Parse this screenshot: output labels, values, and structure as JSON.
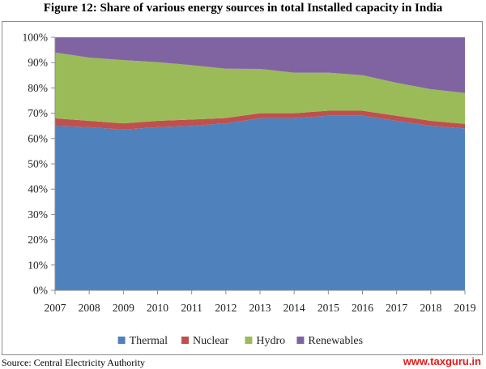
{
  "figure_title": "Figure 12: Share of various energy sources in total Installed capacity in India",
  "source_note": "Source:  Central Electricity Authority",
  "watermark": "www.taxguru.in",
  "chart_data": {
    "type": "area",
    "stacked": true,
    "percent": true,
    "categories": [
      "2007",
      "2008",
      "2009",
      "2010",
      "2011",
      "2012",
      "2013",
      "2014",
      "2015",
      "2016",
      "2017",
      "2018",
      "2019"
    ],
    "ylim": [
      0,
      100
    ],
    "yticks": [
      "0%",
      "10%",
      "20%",
      "30%",
      "40%",
      "50%",
      "60%",
      "70%",
      "80%",
      "90%",
      "100%"
    ],
    "xlabel": "",
    "ylabel": "",
    "grid": false,
    "legend_position": "bottom",
    "series": [
      {
        "name": "Thermal",
        "color": "#4f81bd",
        "values": [
          65,
          64.5,
          63.5,
          64.5,
          65,
          66,
          68,
          68,
          69,
          69,
          67,
          65,
          64
        ]
      },
      {
        "name": "Nuclear",
        "color": "#c0504d",
        "values": [
          3,
          2.5,
          2.5,
          2.5,
          2.5,
          2.1,
          2,
          2,
          2,
          2,
          2,
          2,
          1.8
        ]
      },
      {
        "name": "Hydro",
        "color": "#9bbb59",
        "values": [
          26,
          25,
          25,
          23.2,
          21.5,
          19.5,
          17.5,
          16,
          15,
          14,
          13,
          12.5,
          12.2
        ]
      },
      {
        "name": "Renewables",
        "color": "#8064a2",
        "values": [
          6,
          8,
          9,
          9.8,
          11,
          12.4,
          12.5,
          14,
          14,
          15,
          18,
          20.5,
          22
        ]
      }
    ]
  }
}
